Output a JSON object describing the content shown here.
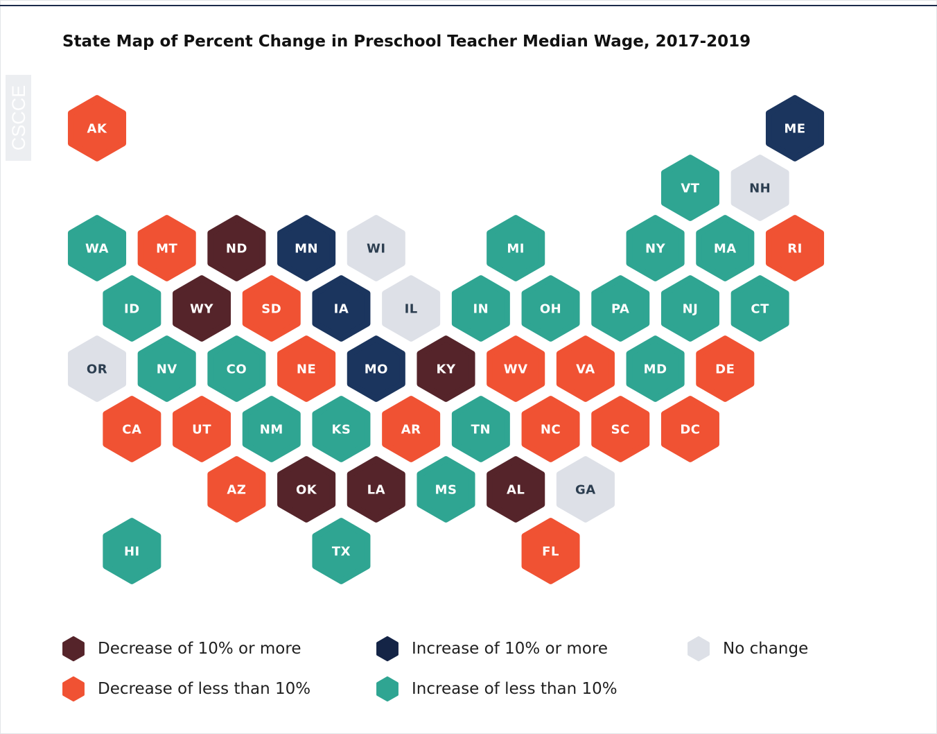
{
  "title": "State Map of Percent Change in Preschool Teacher Median Wage, 2017-2019",
  "watermark": "CSCCE",
  "states": [
    {
      "label": "AK",
      "color": "#f05233"
    },
    {
      "label": "ME",
      "color": "#1b355e"
    },
    {
      "label": "VT",
      "color": "#2fa592"
    },
    {
      "label": "NH",
      "color": "#dde0e7"
    },
    {
      "label": "WA",
      "color": "#2fa592"
    },
    {
      "label": "MT",
      "color": "#f05233"
    },
    {
      "label": "ND",
      "color": "#55242a"
    },
    {
      "label": "MN",
      "color": "#1b355e"
    },
    {
      "label": "WI",
      "color": "#dde0e7"
    },
    {
      "label": "MI",
      "color": "#2fa592"
    },
    {
      "label": "NY",
      "color": "#2fa592"
    },
    {
      "label": "MA",
      "color": "#2fa592"
    },
    {
      "label": "RI",
      "color": "#f05233"
    },
    {
      "label": "ID",
      "color": "#2fa592"
    },
    {
      "label": "WY",
      "color": "#55242a"
    },
    {
      "label": "SD",
      "color": "#f05233"
    },
    {
      "label": "IA",
      "color": "#1b355e"
    },
    {
      "label": "IL",
      "color": "#dde0e7"
    },
    {
      "label": "IN",
      "color": "#2fa592"
    },
    {
      "label": "OH",
      "color": "#2fa592"
    },
    {
      "label": "PA",
      "color": "#2fa592"
    },
    {
      "label": "NJ",
      "color": "#2fa592"
    },
    {
      "label": "CT",
      "color": "#2fa592"
    },
    {
      "label": "OR",
      "color": "#dde0e7"
    },
    {
      "label": "NV",
      "color": "#2fa592"
    },
    {
      "label": "CO",
      "color": "#2fa592"
    },
    {
      "label": "NE",
      "color": "#f05233"
    },
    {
      "label": "MO",
      "color": "#1b355e"
    },
    {
      "label": "KY",
      "color": "#55242a"
    },
    {
      "label": "WV",
      "color": "#f05233"
    },
    {
      "label": "VA",
      "color": "#f05233"
    },
    {
      "label": "MD",
      "color": "#2fa592"
    },
    {
      "label": "DE",
      "color": "#f05233"
    },
    {
      "label": "CA",
      "color": "#f05233"
    },
    {
      "label": "UT",
      "color": "#f05233"
    },
    {
      "label": "NM",
      "color": "#2fa592"
    },
    {
      "label": "KS",
      "color": "#2fa592"
    },
    {
      "label": "AR",
      "color": "#f05233"
    },
    {
      "label": "TN",
      "color": "#2fa592"
    },
    {
      "label": "NC",
      "color": "#f05233"
    },
    {
      "label": "SC",
      "color": "#f05233"
    },
    {
      "label": "DC",
      "color": "#f05233"
    },
    {
      "label": "AZ",
      "color": "#f05233"
    },
    {
      "label": "OK",
      "color": "#55242a"
    },
    {
      "label": "LA",
      "color": "#55242a"
    },
    {
      "label": "MS",
      "color": "#2fa592"
    },
    {
      "label": "AL",
      "color": "#55242a"
    },
    {
      "label": "GA",
      "color": "#dde0e7"
    },
    {
      "label": "HI",
      "color": "#2fa592"
    },
    {
      "label": "TX",
      "color": "#2fa592"
    },
    {
      "label": "FL",
      "color": "#f05233"
    }
  ],
  "legend": [
    {
      "label": "Decrease of 10% or more",
      "color": "#55242a"
    },
    {
      "label": "Decrease of less than 10%",
      "color": "#f05233"
    },
    {
      "label": "Increase of 10% or more",
      "color": "#142446"
    },
    {
      "label": "Increase of less than 10%",
      "color": "#2fa592"
    },
    {
      "label": "No change",
      "color": "#dde0e7"
    }
  ]
}
